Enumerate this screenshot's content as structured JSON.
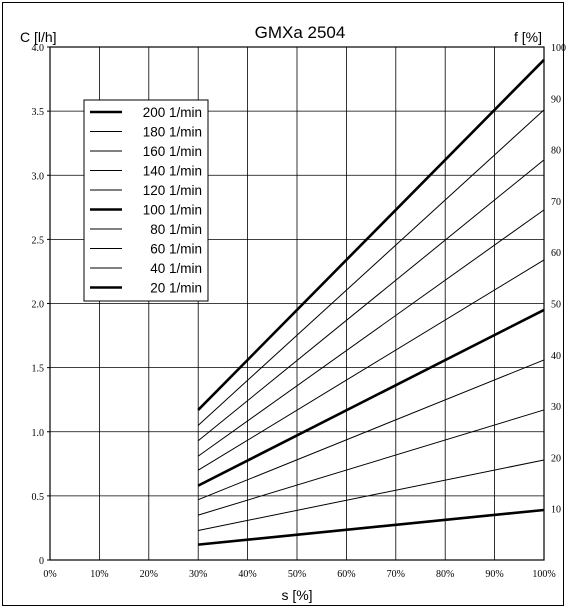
{
  "chart_data": {
    "type": "line",
    "title": "GMXa 2504",
    "xlabel": "s [%]",
    "ylabel": "C [l/h]",
    "y2label": "f [%]",
    "xlim": [
      0,
      100
    ],
    "ylim": [
      0,
      4.0
    ],
    "y2lim": [
      0,
      100
    ],
    "x_ticks": [
      0,
      10,
      20,
      30,
      40,
      50,
      60,
      70,
      80,
      90,
      100
    ],
    "x_tick_labels": [
      "0%",
      "10%",
      "20%",
      "30%",
      "40%",
      "50%",
      "60%",
      "70%",
      "80%",
      "90%",
      "100%"
    ],
    "y_ticks": [
      0,
      0.5,
      1.0,
      1.5,
      2.0,
      2.5,
      3.0,
      3.5,
      4.0
    ],
    "y_tick_labels": [
      "0",
      "0.5",
      "1.0",
      "1.5",
      "2.0",
      "2.5",
      "3.0",
      "3.5",
      "4.0"
    ],
    "y2_ticks": [
      10,
      20,
      30,
      40,
      50,
      60,
      70,
      80,
      90,
      100
    ],
    "y2_tick_labels": [
      "10",
      "20",
      "30",
      "40",
      "50",
      "60",
      "70",
      "80",
      "90",
      "100"
    ],
    "grid": true,
    "legend_position": "upper-left",
    "x": [
      30,
      100
    ],
    "series": [
      {
        "name": "200 1/min",
        "values": [
          1.17,
          3.9
        ],
        "bold": true
      },
      {
        "name": "180 1/min",
        "values": [
          1.05,
          3.51
        ],
        "bold": false
      },
      {
        "name": "160 1/min",
        "values": [
          0.93,
          3.12
        ],
        "bold": false
      },
      {
        "name": "140 1/min",
        "values": [
          0.81,
          2.73
        ],
        "bold": false
      },
      {
        "name": "120 1/min",
        "values": [
          0.7,
          2.34
        ],
        "bold": false
      },
      {
        "name": "100 1/min",
        "values": [
          0.58,
          1.95
        ],
        "bold": true
      },
      {
        "name": "80 1/min",
        "values": [
          0.47,
          1.56
        ],
        "bold": false
      },
      {
        "name": "60 1/min",
        "values": [
          0.35,
          1.17
        ],
        "bold": false
      },
      {
        "name": "40 1/min",
        "values": [
          0.23,
          0.78
        ],
        "bold": false
      },
      {
        "name": "20 1/min",
        "values": [
          0.12,
          0.39
        ],
        "bold": true
      }
    ]
  }
}
